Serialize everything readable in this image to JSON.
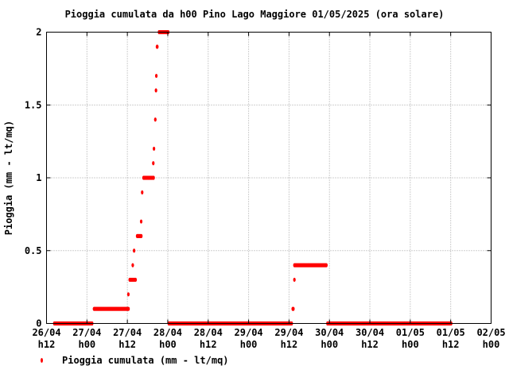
{
  "chart_data": {
    "type": "scatter",
    "title": "Pioggia cumulata da h00 Pino Lago Maggiore 01/05/2025 (ora solare)",
    "ylabel": "Pioggia (mm - lt/mq)",
    "xlabel": "",
    "x_unit": "hours since 26/04 h12",
    "xlim": [
      0,
      132
    ],
    "ylim": [
      0,
      2
    ],
    "y_ticks": [
      "0",
      "0.5",
      "1",
      "1.5",
      "2"
    ],
    "y_tick_values": [
      0,
      0.5,
      1,
      1.5,
      2
    ],
    "x_ticks": [
      {
        "day": "26/04",
        "hour": "h12"
      },
      {
        "day": "27/04",
        "hour": "h00"
      },
      {
        "day": "27/04",
        "hour": "h12"
      },
      {
        "day": "28/04",
        "hour": "h00"
      },
      {
        "day": "28/04",
        "hour": "h12"
      },
      {
        "day": "29/04",
        "hour": "h00"
      },
      {
        "day": "29/04",
        "hour": "h12"
      },
      {
        "day": "30/04",
        "hour": "h00"
      },
      {
        "day": "30/04",
        "hour": "h12"
      },
      {
        "day": "01/05",
        "hour": "h00"
      },
      {
        "day": "01/05",
        "hour": "h12"
      },
      {
        "day": "02/05",
        "hour": "h00"
      }
    ],
    "grid": true,
    "marker_color": "#ff0000",
    "legend_position": "bottom-left",
    "series": [
      {
        "name": "Pioggia cumulata (mm - lt/mq)",
        "segments": [
          {
            "x_start": 2.3,
            "x_end": 13.6,
            "step": 0.25,
            "y": 0.0
          },
          {
            "x_start": 14.1,
            "x_end": 24.5,
            "step": 0.25,
            "y": 0.1
          },
          {
            "x_start": 24.7,
            "x_end": 26.5,
            "step": 0.25,
            "y": 0.3
          },
          {
            "x_start": 26.9,
            "x_end": 28.2,
            "step": 0.25,
            "y": 0.6
          },
          {
            "x_start": 28.8,
            "x_end": 31.9,
            "step": 0.25,
            "y": 1.0
          },
          {
            "x_start": 33.4,
            "x_end": 36.2,
            "step": 0.25,
            "y": 2.0
          },
          {
            "x_start": 36.3,
            "x_end": 72.8,
            "step": 0.25,
            "y": 0.0
          },
          {
            "x_start": 73.6,
            "x_end": 83.2,
            "step": 0.25,
            "y": 0.4
          },
          {
            "x_start": 83.4,
            "x_end": 120.2,
            "step": 0.25,
            "y": 0.0
          }
        ],
        "points": [
          [
            24.3,
            0.2
          ],
          [
            25.6,
            0.4
          ],
          [
            26.0,
            0.5
          ],
          [
            28.1,
            0.7
          ],
          [
            28.4,
            0.9
          ],
          [
            31.7,
            1.1
          ],
          [
            31.9,
            1.2
          ],
          [
            32.3,
            1.4
          ],
          [
            32.5,
            1.6
          ],
          [
            32.6,
            1.7
          ],
          [
            32.8,
            1.9
          ],
          [
            32.9,
            1.9
          ],
          [
            73.1,
            0.1
          ],
          [
            73.3,
            0.1
          ],
          [
            73.6,
            0.3
          ]
        ]
      }
    ]
  }
}
